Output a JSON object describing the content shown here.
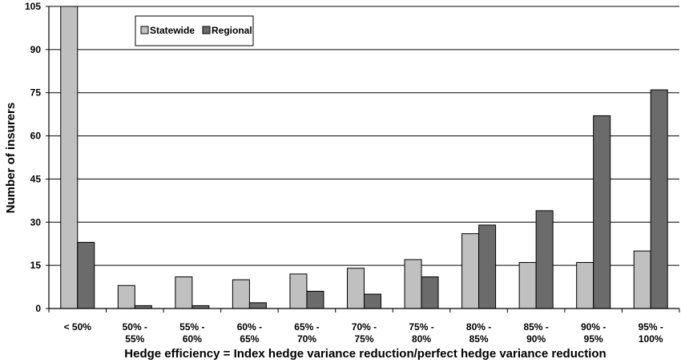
{
  "chart_data": {
    "type": "bar",
    "title": "",
    "xlabel": "Hedge efficiency = Index hedge variance reduction/perfect hedge variance reduction",
    "ylabel": "Number of insurers",
    "ylim": [
      0,
      105
    ],
    "yticks": [
      "0",
      "15",
      "30",
      "45",
      "60",
      "75",
      "90",
      "105"
    ],
    "categories": [
      [
        "< 50%"
      ],
      [
        "50% -",
        "55%"
      ],
      [
        "55% -",
        "60%"
      ],
      [
        "60% -",
        "65%"
      ],
      [
        "65% -",
        "70%"
      ],
      [
        "70% -",
        "75%"
      ],
      [
        "75% -",
        "80%"
      ],
      [
        "80% -",
        "85%"
      ],
      [
        "85% -",
        "90%"
      ],
      [
        "90% -",
        "95%"
      ],
      [
        "95% -",
        "100%"
      ]
    ],
    "series": [
      {
        "name": "Statewide",
        "color": "#c0c0c0",
        "values": [
          105,
          8,
          11,
          10,
          12,
          14,
          17,
          26,
          16,
          16,
          20
        ]
      },
      {
        "name": "Regional",
        "color": "#6b6b6b",
        "values": [
          23,
          1,
          1,
          2,
          6,
          5,
          11,
          29,
          34,
          67,
          76
        ]
      }
    ],
    "grid": true,
    "legend": "top-left"
  }
}
